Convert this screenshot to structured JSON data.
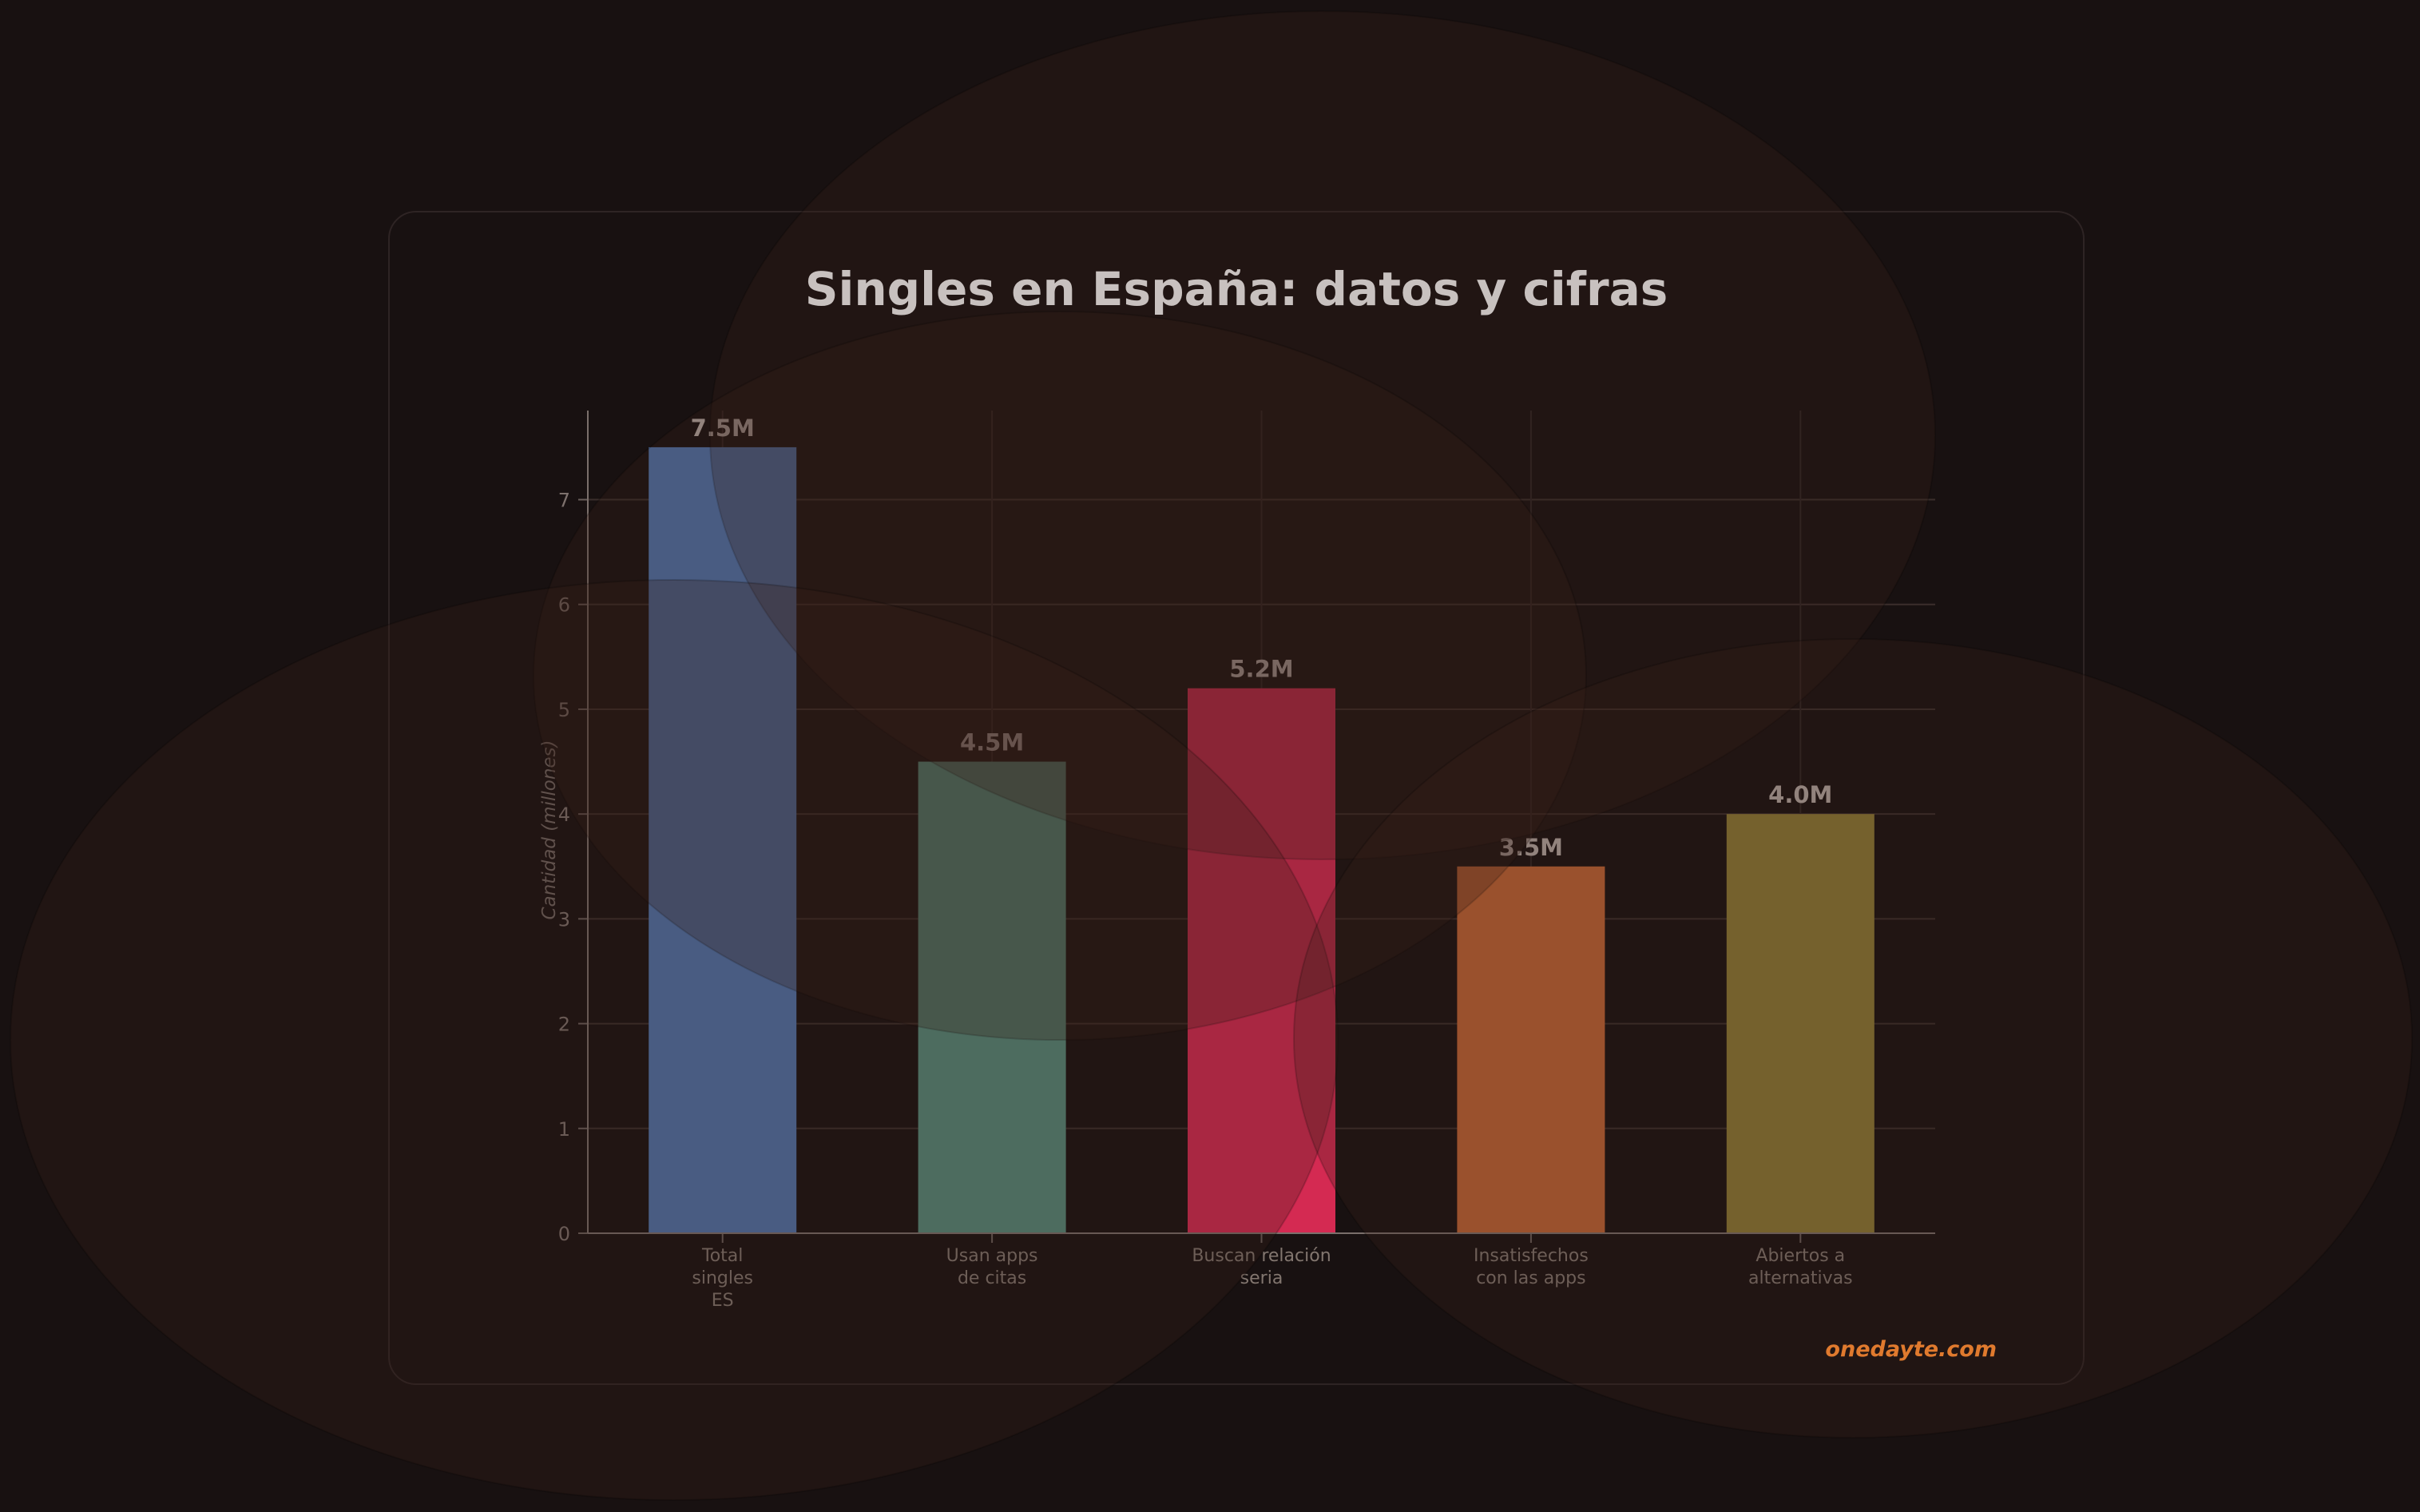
{
  "chart_data": {
    "type": "bar",
    "title": "Singles en España: datos y cifras",
    "xlabel": "",
    "ylabel": "Cantidad (millones)",
    "ylim": [
      0,
      7.85
    ],
    "yticks": [
      "0",
      "1",
      "2",
      "3",
      "4",
      "5",
      "6",
      "7"
    ],
    "grid": true,
    "categories": [
      "Total\nsingles\nES",
      "Usan apps\nde citas",
      "Buscan relación\nseria",
      "Insatisfechos\ncon las apps",
      "Abiertos a\nalternativas"
    ],
    "values": [
      7.5,
      4.5,
      5.2,
      3.5,
      4.0
    ],
    "data_labels": [
      "7.5M",
      "4.5M",
      "5.2M",
      "3.5M",
      "4.0M"
    ],
    "colors": [
      "#4f74ab",
      "#55897a",
      "#d42a52",
      "#c06535",
      "#8c7b35"
    ]
  },
  "watermark": "onedayte.com",
  "colors": {
    "background": "#181111",
    "accent": "#e07a2e"
  }
}
